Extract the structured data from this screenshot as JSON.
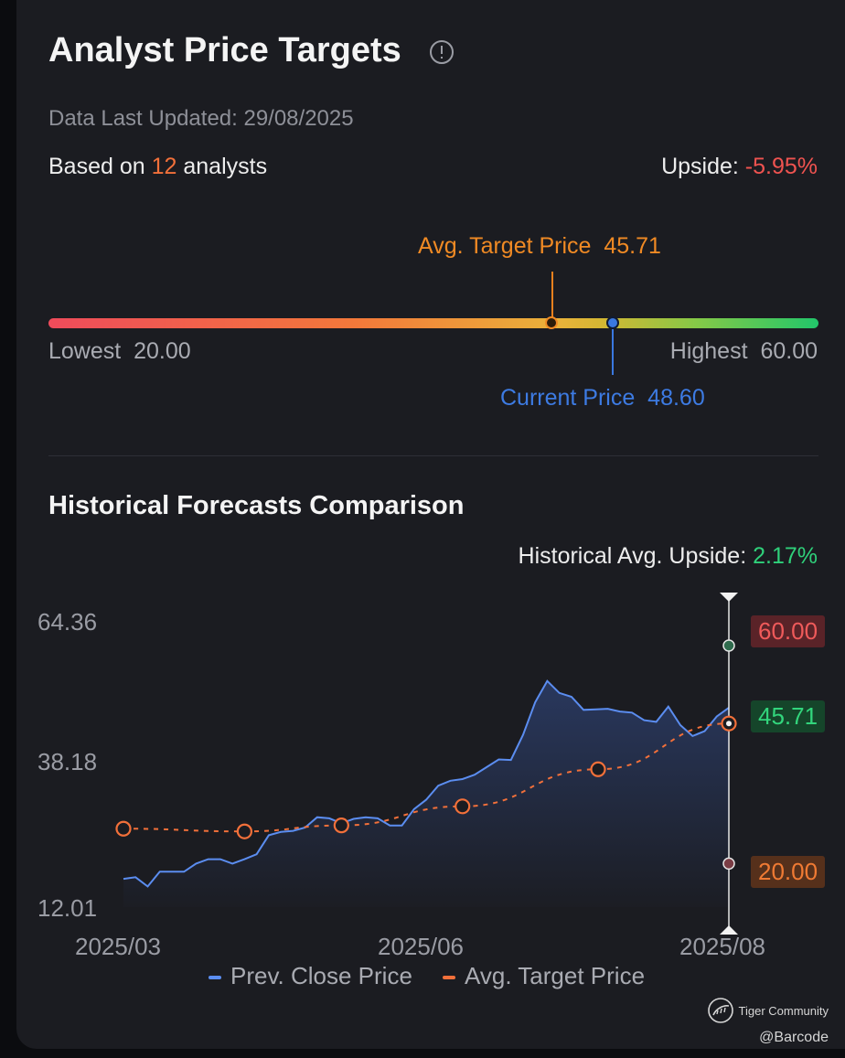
{
  "header": {
    "title": "Analyst Price Targets",
    "updated": "Data Last Updated: 29/08/2025",
    "based_prefix": "Based on ",
    "analyst_count": "12",
    "based_suffix": " analysts",
    "upside_label": "Upside: ",
    "upside_value": "-5.95%"
  },
  "range": {
    "avg_label": "Avg. Target Price",
    "avg_value": "45.71",
    "lowest_label": "Lowest",
    "lowest_value": "20.00",
    "highest_label": "Highest",
    "highest_value": "60.00",
    "current_label": "Current Price",
    "current_value": "48.60",
    "avg_num": 45.71,
    "current_num": 48.6,
    "low_num": 20,
    "high_num": 60
  },
  "historical": {
    "title": "Historical Forecasts Comparison",
    "upside_label": "Historical Avg. Upside: ",
    "upside_value": "2.17%",
    "legend_close": "Prev. Close Price",
    "legend_target": "Avg. Target Price"
  },
  "colors": {
    "close_line": "#5b8df0",
    "target_line": "#f2703a",
    "high_badge": "#ef5a5a",
    "avg_badge": "#32d57c",
    "low_badge": "#f07a33"
  },
  "chart_data": {
    "type": "line",
    "title": "",
    "xlabel": "",
    "ylabel": "",
    "x_ticks": [
      "2025/03",
      "2025/06",
      "2025/08"
    ],
    "y_ticks": [
      "64.36",
      "38.18",
      "12.01"
    ],
    "ylim": [
      12.01,
      64.36
    ],
    "grid": false,
    "legend": "bottom",
    "badges": {
      "high": "60.00",
      "avg": "45.71",
      "low": "20.00"
    },
    "badge_values": {
      "high": 60.0,
      "avg": 45.71,
      "low": 20.0
    },
    "series": [
      {
        "name": "Prev. Close Price",
        "x": [
          0.0,
          0.5,
          1.0,
          1.5,
          2.0,
          2.5,
          3.0,
          3.5,
          4.0,
          4.5,
          5.0,
          5.5,
          6.0,
          6.5,
          7.0,
          7.5,
          8.0,
          8.5,
          9.0,
          9.5,
          10.0,
          10.5,
          11.0,
          11.5,
          12.0,
          12.5,
          13.0,
          13.5,
          14.0,
          14.5,
          15.0,
          15.5,
          16.0,
          16.5,
          17.0,
          17.5,
          18.0,
          18.5,
          19.0,
          19.5,
          20.0,
          20.5,
          21.0,
          21.5,
          22.0,
          22.5,
          23.0,
          23.5,
          24.0,
          24.5,
          25.0
        ],
        "values": [
          17.2,
          17.5,
          15.8,
          18.5,
          18.5,
          18.5,
          20.0,
          20.8,
          20.8,
          20.0,
          20.8,
          21.7,
          25.2,
          25.8,
          26.0,
          26.6,
          28.5,
          28.3,
          27.4,
          28.2,
          28.5,
          28.3,
          27.0,
          27.0,
          30.0,
          31.7,
          34.3,
          35.2,
          35.5,
          36.3,
          37.7,
          39.1,
          39.0,
          43.6,
          49.6,
          53.5,
          51.3,
          50.6,
          48.2,
          48.3,
          48.4,
          47.9,
          47.7,
          46.3,
          46.0,
          48.8,
          45.4,
          43.4,
          44.3,
          47.0,
          48.6
        ]
      },
      {
        "name": "Avg. Target Price",
        "x": [
          0,
          5,
          9,
          14,
          19.6,
          25
        ],
        "values": [
          26.4,
          25.9,
          27.0,
          30.5,
          37.3,
          45.7
        ]
      }
    ]
  }
}
